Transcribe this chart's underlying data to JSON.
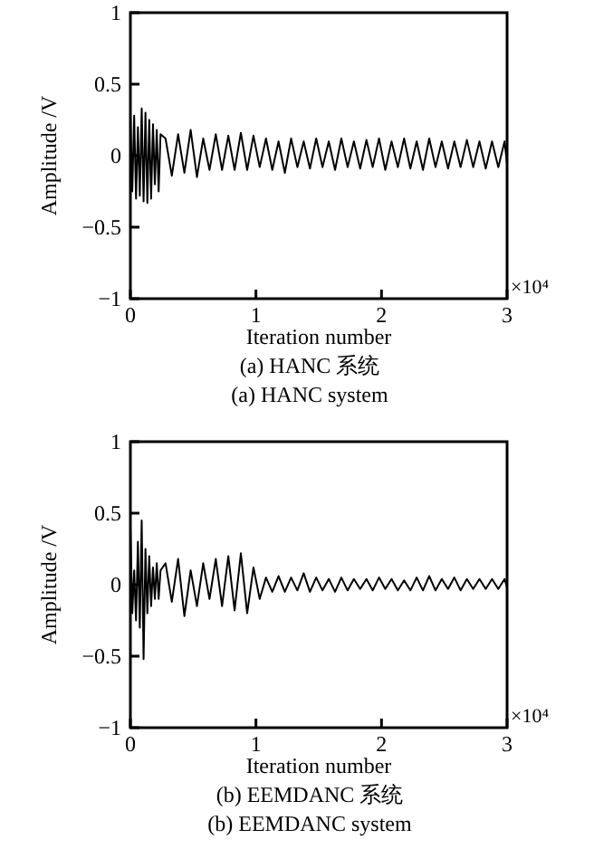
{
  "chart_data": [
    {
      "type": "line",
      "xlabel": "Iteration number",
      "ylabel": "Amplitude /V",
      "annotations": [
        "×10⁴",
        "(a) HANC 系统",
        "(a) HANC system"
      ],
      "x": [
        0,
        0.015,
        0.03,
        0.045,
        0.06,
        0.075,
        0.09,
        0.105,
        0.12,
        0.135,
        0.15,
        0.165,
        0.18,
        0.195,
        0.21,
        0.225,
        0.24,
        0.28,
        0.33,
        0.38,
        0.43,
        0.48,
        0.53,
        0.58,
        0.63,
        0.68,
        0.73,
        0.78,
        0.83,
        0.88,
        0.93,
        0.98,
        1.03,
        1.08,
        1.13,
        1.18,
        1.23,
        1.28,
        1.33,
        1.38,
        1.43,
        1.48,
        1.53,
        1.58,
        1.63,
        1.68,
        1.73,
        1.78,
        1.83,
        1.88,
        1.93,
        1.98,
        2.03,
        2.08,
        2.13,
        2.18,
        2.23,
        2.28,
        2.33,
        2.38,
        2.43,
        2.48,
        2.53,
        2.58,
        2.63,
        2.68,
        2.73,
        2.78,
        2.83,
        2.88,
        2.93,
        2.98,
        3
      ],
      "series": [
        {
          "color": "#000000",
          "values": [
            0.3,
            -0.25,
            0.28,
            -0.3,
            0.2,
            -0.28,
            0.33,
            -0.32,
            0.3,
            -0.33,
            0.25,
            -0.3,
            0.22,
            -0.2,
            0.18,
            -0.25,
            0.15,
            0.12,
            -0.14,
            0.15,
            -0.12,
            0.18,
            -0.15,
            0.12,
            -0.1,
            0.15,
            -0.1,
            0.14,
            -0.1,
            0.16,
            -0.1,
            0.14,
            -0.08,
            0.12,
            -0.1,
            0.1,
            -0.12,
            0.12,
            -0.08,
            0.1,
            -0.09,
            0.12,
            -0.08,
            0.1,
            -0.1,
            0.12,
            -0.08,
            0.1,
            -0.09,
            0.11,
            -0.08,
            0.12,
            -0.1,
            0.1,
            -0.08,
            0.12,
            -0.09,
            0.1,
            -0.1,
            0.12,
            -0.08,
            0.1,
            -0.09,
            0.1,
            -0.08,
            0.11,
            -0.08,
            0.1,
            -0.09,
            0.1,
            -0.08,
            0.1,
            -0.06
          ]
        }
      ],
      "xlim": [
        0,
        3
      ],
      "xticks": [
        0,
        1,
        2,
        3
      ],
      "ylim": [
        -1,
        1
      ],
      "yticks": [
        -1,
        -0.5,
        0,
        0.5,
        1
      ]
    },
    {
      "type": "line",
      "xlabel": "Iteration number",
      "ylabel": "Amplitude /V",
      "annotations": [
        "×10⁴",
        "(b) EEMDANC 系统",
        "(b) EEMDANC system"
      ],
      "x": [
        0,
        0.015,
        0.03,
        0.045,
        0.06,
        0.075,
        0.09,
        0.105,
        0.12,
        0.135,
        0.15,
        0.165,
        0.18,
        0.195,
        0.21,
        0.225,
        0.24,
        0.28,
        0.33,
        0.38,
        0.43,
        0.48,
        0.53,
        0.58,
        0.63,
        0.68,
        0.73,
        0.78,
        0.83,
        0.88,
        0.93,
        0.98,
        1.03,
        1.08,
        1.13,
        1.18,
        1.23,
        1.28,
        1.33,
        1.38,
        1.43,
        1.48,
        1.53,
        1.58,
        1.63,
        1.68,
        1.73,
        1.78,
        1.83,
        1.88,
        1.93,
        1.98,
        2.03,
        2.08,
        2.13,
        2.18,
        2.23,
        2.28,
        2.33,
        2.38,
        2.43,
        2.48,
        2.53,
        2.58,
        2.63,
        2.68,
        2.73,
        2.78,
        2.83,
        2.88,
        2.93,
        2.98,
        3
      ],
      "series": [
        {
          "color": "#000000",
          "values": [
            0.4,
            -0.2,
            0.1,
            -0.25,
            0.3,
            -0.3,
            0.45,
            -0.52,
            0.25,
            -0.2,
            0.2,
            -0.15,
            0.12,
            -0.1,
            0.15,
            -0.1,
            0.1,
            0.15,
            -0.12,
            0.18,
            -0.22,
            0.1,
            -0.15,
            0.15,
            -0.1,
            0.18,
            -0.15,
            0.2,
            -0.18,
            0.22,
            -0.2,
            0.12,
            -0.1,
            0.05,
            -0.05,
            0.06,
            -0.05,
            0.05,
            -0.04,
            0.08,
            -0.05,
            0.05,
            -0.04,
            0.04,
            -0.05,
            0.05,
            -0.04,
            0.04,
            -0.03,
            0.04,
            -0.04,
            0.05,
            -0.03,
            0.04,
            -0.04,
            0.03,
            -0.04,
            0.05,
            -0.04,
            0.06,
            -0.04,
            0.04,
            -0.03,
            0.05,
            -0.04,
            0.04,
            -0.03,
            0.04,
            -0.03,
            0.04,
            -0.03,
            0.04,
            -0.02
          ]
        }
      ],
      "xlim": [
        0,
        3
      ],
      "xticks": [
        0,
        1,
        2,
        3
      ],
      "ylim": [
        -1,
        1
      ],
      "yticks": [
        -1,
        -0.5,
        0,
        0.5,
        1
      ]
    }
  ]
}
